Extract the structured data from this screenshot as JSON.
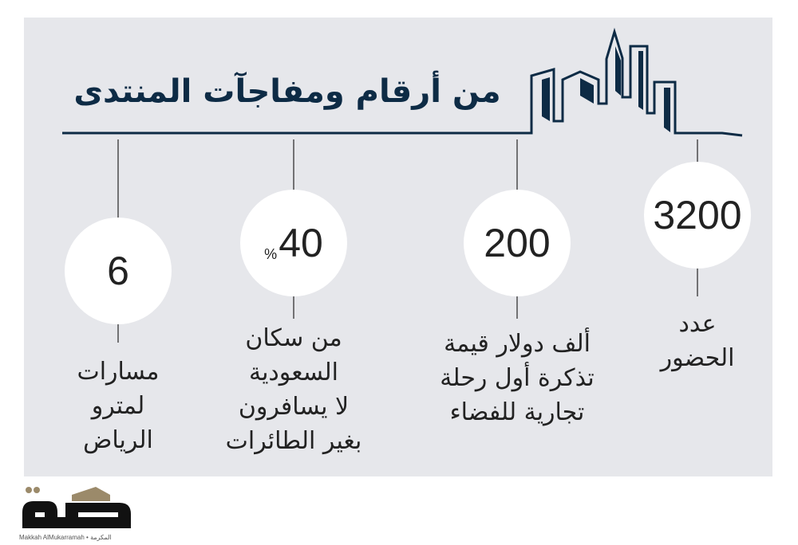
{
  "title": "من أرقام ومفاجآت المنتدى",
  "colors": {
    "navy": "#0d2b45",
    "panel": "#e6e7eb",
    "circle": "#ffffff"
  },
  "stats": [
    {
      "value": "3200",
      "caption_lines": [
        "عدد",
        "الحضور"
      ]
    },
    {
      "value": "200",
      "caption_lines": [
        "ألف دولار قيمة",
        "تذكرة أول رحلة",
        "تجارية للفضاء"
      ]
    },
    {
      "value": "40",
      "unit": "%",
      "caption_lines": [
        "من سكان",
        "السعودية",
        "لا يسافرون",
        "بغير الطائرات"
      ]
    },
    {
      "value": "6",
      "caption_lines": [
        "مسارات",
        "لمترو",
        "الرياض"
      ]
    }
  ],
  "logo": {
    "text": "مكة",
    "subtitle": "Makkah AlMukarramah • المكرمة"
  }
}
